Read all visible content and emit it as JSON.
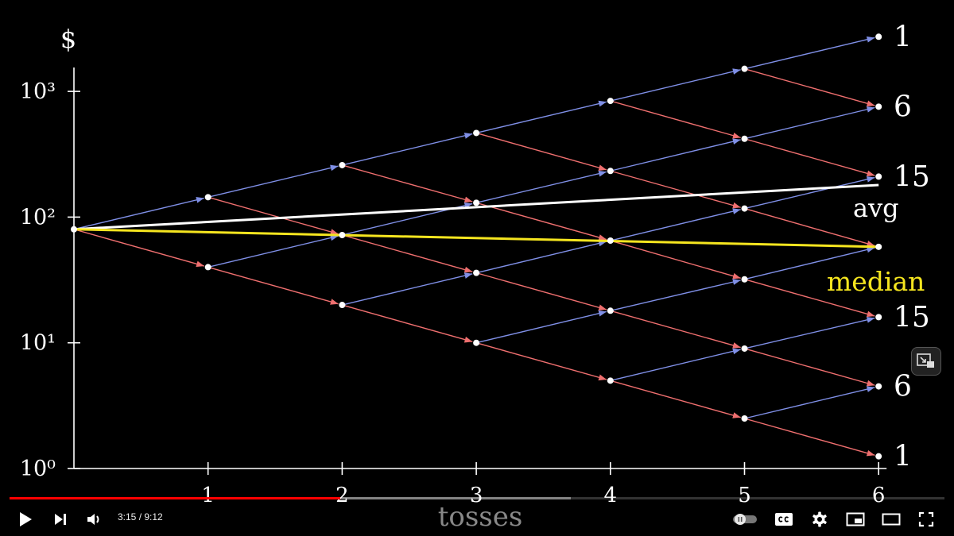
{
  "chart_data": {
    "type": "line",
    "y_axis_label": "$",
    "x_axis_label": "tosses",
    "y_scale": "log",
    "y_ticks": [
      "10³",
      "10²",
      "10¹",
      "10⁰"
    ],
    "y_tick_values": [
      1000,
      100,
      10,
      1
    ],
    "x_ticks": [
      "1",
      "2",
      "3",
      "4",
      "5",
      "6"
    ],
    "x_tick_values": [
      1,
      2,
      3,
      4,
      5,
      6
    ],
    "ylim": [
      1,
      3000
    ],
    "xlim": [
      0,
      6
    ],
    "start_value": 80,
    "up_factor": 1.8,
    "down_factor": 0.5,
    "nodes": [
      {
        "x": 0,
        "values": [
          80
        ]
      },
      {
        "x": 1,
        "values": [
          144,
          40
        ]
      },
      {
        "x": 2,
        "values": [
          259,
          72,
          20
        ]
      },
      {
        "x": 3,
        "values": [
          467,
          130,
          36,
          10
        ]
      },
      {
        "x": 4,
        "values": [
          840,
          233,
          65,
          18,
          5
        ]
      },
      {
        "x": 5,
        "values": [
          1512,
          420,
          117,
          32,
          9,
          2.5
        ]
      },
      {
        "x": 6,
        "values": [
          2721,
          756,
          210,
          58,
          16,
          4.5,
          1.25
        ]
      }
    ],
    "final_counts": [
      "1",
      "6",
      "15",
      "",
      "15",
      "6",
      "1"
    ],
    "series": [
      {
        "name": "avg",
        "x": [
          0,
          6
        ],
        "values": [
          80,
          180
        ]
      },
      {
        "name": "median",
        "x": [
          0,
          6
        ],
        "values": [
          80,
          58
        ]
      }
    ],
    "colors": {
      "up": "#7f8fe6",
      "down": "#ef6f6f",
      "avg": "#ffffff",
      "median": "#f5e51f",
      "axis": "#ffffff",
      "node": "#ffffff"
    }
  },
  "player": {
    "time_label": "3:15 / 9:12",
    "played_fraction": 0.354,
    "buffered_fraction": 0.6
  }
}
